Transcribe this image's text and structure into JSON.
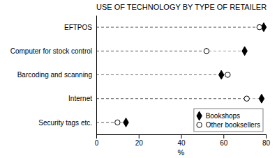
{
  "chart_data": {
    "type": "dot",
    "title": "USE OF TECHNOLOGY BY TYPE OF RETAILER",
    "categories": [
      "EFTPOS",
      "Computer for stock control",
      "Barcoding and scanning",
      "Internet",
      "Security tags etc."
    ],
    "series": [
      {
        "name": "Bookshops",
        "color": "#000000",
        "marker": "diamond",
        "values": [
          79,
          70,
          59,
          78,
          14
        ]
      },
      {
        "name": "Other booksellers",
        "color": "#ffffff",
        "marker": "circle",
        "values": [
          77,
          52,
          62,
          71,
          10
        ]
      }
    ],
    "xlabel": "%",
    "xlim": [
      0,
      80
    ],
    "xticks": [
      0,
      20,
      40,
      60,
      80
    ],
    "line_style": "dashed",
    "legend": "lower right"
  }
}
